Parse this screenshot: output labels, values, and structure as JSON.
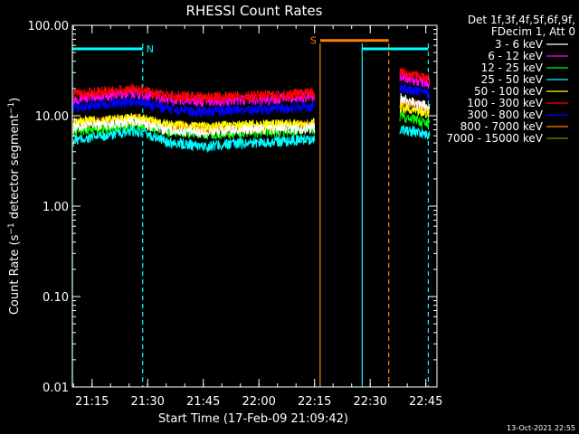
{
  "chart_data": {
    "type": "line",
    "title": "RHESSI Count Rates",
    "xlabel": "Start Time (17-Feb-09 21:09:42)",
    "ylabel_main": "Count Rate (s",
    "ylabel_sup": "−1",
    "ylabel_end": " detector segment",
    "ylabel_close": ")",
    "yscale": "log",
    "ylim": [
      0.01,
      100
    ],
    "y_ticks": [
      {
        "value": 0.01,
        "label": "0.01"
      },
      {
        "value": 0.1,
        "label": "0.10"
      },
      {
        "value": 1,
        "label": "1.00"
      },
      {
        "value": 10,
        "label": "10.00"
      },
      {
        "value": 100,
        "label": "100.00"
      }
    ],
    "x_range_minutes": [
      "21:09:42",
      "22:48:00"
    ],
    "x_ticks": [
      {
        "time": "21:15",
        "label": "21:15"
      },
      {
        "time": "21:30",
        "label": "21:30"
      },
      {
        "time": "21:45",
        "label": "21:45"
      },
      {
        "time": "22:00",
        "label": "22:00"
      },
      {
        "time": "22:15",
        "label": "22:15"
      },
      {
        "time": "22:30",
        "label": "22:30"
      },
      {
        "time": "22:45",
        "label": "22:45"
      }
    ],
    "legend_header_1": "Det 1f,3f,4f,5f,6f,9f,",
    "legend_header_2": "FDecim 1, Att 0",
    "series": [
      {
        "name": "3 - 6 keV",
        "color": "#ffffff",
        "segments": [
          {
            "x": [
              "21:10",
              "21:20",
              "21:27",
              "21:35",
              "21:45",
              "21:55",
              "22:05",
              "22:15"
            ],
            "y": [
              7.5,
              8.2,
              8.6,
              7.0,
              6.5,
              7.0,
              7.2,
              7.4
            ]
          },
          {
            "x": [
              "22:38",
              "22:42",
              "22:46"
            ],
            "y": [
              16.0,
              14.0,
              12.5
            ]
          }
        ]
      },
      {
        "name": "6 - 12 keV",
        "color": "#ff00ff",
        "segments": [
          {
            "x": [
              "21:10",
              "21:20",
              "21:27",
              "21:35",
              "21:45",
              "21:55",
              "22:05",
              "22:15"
            ],
            "y": [
              15.5,
              17.0,
              18.0,
              15.5,
              14.5,
              15.0,
              15.5,
              16.5
            ]
          },
          {
            "x": [
              "22:38",
              "22:42",
              "22:46"
            ],
            "y": [
              28.0,
              25.0,
              22.5
            ]
          }
        ]
      },
      {
        "name": "12 - 25 keV",
        "color": "#00ff00",
        "segments": [
          {
            "x": [
              "21:10",
              "21:20",
              "21:27",
              "21:35",
              "21:45",
              "21:55",
              "22:05",
              "22:15"
            ],
            "y": [
              6.8,
              7.5,
              8.0,
              6.8,
              6.2,
              6.5,
              6.7,
              7.0
            ]
          },
          {
            "x": [
              "22:38",
              "22:42",
              "22:46"
            ],
            "y": [
              10.0,
              9.0,
              8.0
            ]
          }
        ]
      },
      {
        "name": "25 - 50 keV",
        "color": "#00ffff",
        "segments": [
          {
            "x": [
              "21:10",
              "21:20",
              "21:27",
              "21:35",
              "21:45",
              "21:55",
              "22:05",
              "22:15"
            ],
            "y": [
              5.3,
              6.2,
              6.8,
              5.2,
              4.6,
              5.0,
              5.2,
              5.6
            ]
          },
          {
            "x": [
              "22:38",
              "22:42",
              "22:46"
            ],
            "y": [
              7.2,
              6.7,
              6.2
            ]
          }
        ]
      },
      {
        "name": "50 - 100 keV",
        "color": "#ffff00",
        "segments": [
          {
            "x": [
              "21:10",
              "21:20",
              "21:27",
              "21:35",
              "21:45",
              "21:55",
              "22:05",
              "22:15"
            ],
            "y": [
              8.5,
              9.0,
              9.5,
              8.0,
              7.5,
              7.8,
              8.0,
              8.3
            ]
          },
          {
            "x": [
              "22:38",
              "22:42",
              "22:46"
            ],
            "y": [
              12.5,
              11.5,
              10.8
            ]
          }
        ]
      },
      {
        "name": "100 - 300 keV",
        "color": "#ff0000",
        "segments": [
          {
            "x": [
              "21:10",
              "21:20",
              "21:27",
              "21:35",
              "21:45",
              "21:55",
              "22:05",
              "22:15"
            ],
            "y": [
              17.5,
              19.0,
              20.0,
              17.0,
              16.0,
              16.5,
              17.0,
              18.0
            ]
          },
          {
            "x": [
              "22:38",
              "22:42",
              "22:46"
            ],
            "y": [
              31.0,
              28.0,
              25.0
            ]
          }
        ]
      },
      {
        "name": "300 - 800 keV",
        "color": "#0000ff",
        "segments": [
          {
            "x": [
              "21:10",
              "21:20",
              "21:27",
              "21:35",
              "21:45",
              "21:55",
              "22:05",
              "22:15"
            ],
            "y": [
              12.5,
              13.8,
              14.5,
              12.0,
              11.0,
              11.5,
              12.0,
              12.8
            ]
          },
          {
            "x": [
              "22:38",
              "22:42",
              "22:46"
            ],
            "y": [
              21.0,
              19.0,
              17.5
            ]
          }
        ]
      },
      {
        "name": "800 - 7000 keV",
        "color": "#ff8000",
        "segments": [
          {
            "x": [
              "21:10",
              "21:20",
              "21:27",
              "21:35",
              "21:45",
              "21:55",
              "22:05",
              "22:15"
            ],
            "y": [
              8.2,
              8.8,
              9.2,
              7.8,
              7.2,
              7.5,
              7.7,
              8.0
            ]
          },
          {
            "x": [
              "22:38",
              "22:42",
              "22:46"
            ],
            "y": [
              14.0,
              13.0,
              12.0
            ]
          }
        ]
      },
      {
        "name": "7000 - 15000 keV",
        "color": "#808000",
        "segments": []
      }
    ],
    "attenuator_lines": [
      {
        "time": "21:09:42",
        "color": "#00ffff",
        "style": "solid"
      },
      {
        "time": "21:28:40",
        "color": "#00ffff",
        "style": "dashed"
      },
      {
        "time": "22:16:30",
        "color": "#ff8000",
        "style": "solid"
      },
      {
        "time": "22:27:50",
        "color": "#00ffff",
        "style": "solid"
      },
      {
        "time": "22:35:00",
        "color": "#ff8000",
        "style": "dashed"
      },
      {
        "time": "22:45:40",
        "color": "#00ffff",
        "style": "dashed"
      }
    ],
    "bars": [
      {
        "label": "N",
        "color": "#00ffff",
        "from": "21:09:42",
        "to": "21:28:40",
        "value": 55
      },
      {
        "label": "S",
        "color": "#ff8000",
        "from": "22:16:30",
        "to": "22:35:00",
        "value": 68
      },
      {
        "label": "",
        "color": "#00ffff",
        "from": "22:27:50",
        "to": "22:45:40",
        "value": 55
      }
    ],
    "grid": false
  },
  "timestamp": "13-Oct-2021 22:55"
}
